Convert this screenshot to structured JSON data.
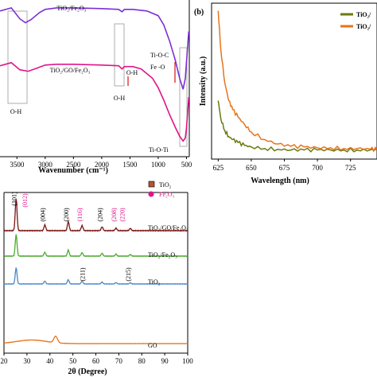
{
  "chart_data": [
    {
      "type": "line",
      "panel": "a",
      "xlabel": "Wavenumber (cm⁻¹)",
      "xlim": [
        3800,
        450
      ],
      "ticks": [
        "3500",
        "3000",
        "2500",
        "2000",
        "1500",
        "1000",
        "500"
      ],
      "tick_values": [
        3500,
        3000,
        2500,
        2000,
        1500,
        1000,
        500
      ],
      "series": [
        {
          "name": "TiO₂/Fe₂O₃",
          "color": "#7b2fd6",
          "x": [
            3800,
            3600,
            3450,
            3350,
            3250,
            3100,
            3000,
            2800,
            2500,
            2000,
            1700,
            1640,
            1600,
            1450,
            1200,
            1000,
            900,
            800,
            700,
            620,
            560,
            520,
            500,
            480,
            460
          ],
          "y": [
            0.93,
            0.95,
            0.88,
            0.855,
            0.875,
            0.92,
            0.94,
            0.95,
            0.95,
            0.945,
            0.94,
            0.925,
            0.94,
            0.94,
            0.93,
            0.9,
            0.84,
            0.74,
            0.62,
            0.5,
            0.43,
            0.5,
            0.6,
            0.7,
            0.8
          ]
        },
        {
          "name": "TiO₂/GO/Fe₂O₃",
          "color": "#e0148a",
          "x": [
            3800,
            3600,
            3450,
            3300,
            3150,
            3000,
            2800,
            2500,
            2000,
            1700,
            1640,
            1600,
            1450,
            1300,
            1100,
            1000,
            900,
            800,
            700,
            620,
            560,
            520,
            500,
            480,
            460
          ],
          "y": [
            0.58,
            0.6,
            0.555,
            0.545,
            0.565,
            0.585,
            0.59,
            0.59,
            0.585,
            0.58,
            0.56,
            0.575,
            0.575,
            0.56,
            0.5,
            0.44,
            0.36,
            0.27,
            0.19,
            0.13,
            0.1,
            0.12,
            0.18,
            0.28,
            0.38
          ]
        }
      ],
      "annotations": {
        "tio2fe": "TiO₂/Fe₂O₃",
        "tio2gofe": "TiO₂/GO/Fe₂O₃",
        "oh1": "O-H",
        "oh2": "O-H",
        "oh3": "O-H",
        "tioc": "Ti-O-C",
        "feo": "Fe -O",
        "tioti": "Ti-O-Ti"
      }
    },
    {
      "type": "line",
      "panel": "b",
      "panel_label": "(b)",
      "xlabel": "Wavelength (nm)",
      "ylabel": "Intensity (a.u.)",
      "xlim": [
        620,
        745
      ],
      "ticks": [
        "625",
        "650",
        "675",
        "700",
        "725"
      ],
      "tick_values": [
        625,
        650,
        675,
        700,
        725
      ],
      "legend_position": "top-right",
      "series": [
        {
          "name": "TiO₂/",
          "color": "#6b7a12",
          "x": [
            625,
            627,
            630,
            633,
            636,
            640,
            645,
            650,
            660,
            670,
            680,
            690,
            700,
            710,
            720,
            730,
            740,
            745
          ],
          "y": [
            0.38,
            0.26,
            0.18,
            0.14,
            0.12,
            0.1,
            0.08,
            0.07,
            0.06,
            0.055,
            0.05,
            0.05,
            0.05,
            0.05,
            0.05,
            0.05,
            0.05,
            0.05
          ]
        },
        {
          "name": "TiO₂/",
          "color": "#e8741a",
          "x": [
            625,
            627,
            630,
            633,
            636,
            640,
            645,
            650,
            660,
            670,
            680,
            690,
            700,
            710,
            720,
            730,
            740,
            745
          ],
          "y": [
            0.98,
            0.72,
            0.5,
            0.38,
            0.32,
            0.27,
            0.22,
            0.17,
            0.12,
            0.09,
            0.075,
            0.07,
            0.065,
            0.065,
            0.06,
            0.06,
            0.055,
            0.055
          ]
        }
      ]
    },
    {
      "type": "line",
      "panel": "c",
      "xlabel": "2θ (Degree)",
      "xlim": [
        20,
        100
      ],
      "ticks": [
        "20",
        "30",
        "40",
        "50",
        "60",
        "70",
        "80",
        "90",
        "100"
      ],
      "tick_values": [
        20,
        30,
        40,
        50,
        60,
        70,
        80,
        90,
        100
      ],
      "legend": [
        {
          "name": "TiO₂",
          "color": "#000000"
        },
        {
          "name": "Fe₂O₃",
          "color": "#e0148a"
        }
      ],
      "series": [
        {
          "name": "TiO₂/GO/Fe₂O₃",
          "color": "#7a1414",
          "baseline": 0.0,
          "peaks": [
            [
              25.3,
              1.0
            ],
            [
              37.8,
              0.18
            ],
            [
              48.0,
              0.28
            ],
            [
              54.0,
              0.16
            ],
            [
              62.7,
              0.12
            ],
            [
              68.8,
              0.08
            ],
            [
              75.0,
              0.07
            ]
          ]
        },
        {
          "name": "TiO₂/Fe₂O₃",
          "color": "#4daa2f",
          "baseline": 0.0,
          "peaks": [
            [
              25.3,
              0.8
            ],
            [
              37.8,
              0.14
            ],
            [
              48.0,
              0.22
            ],
            [
              54.0,
              0.13
            ],
            [
              62.7,
              0.1
            ],
            [
              68.8,
              0.07
            ],
            [
              75.0,
              0.06
            ]
          ]
        },
        {
          "name": "TiO₂",
          "color": "#4a87c8",
          "baseline": 0.0,
          "peaks": [
            [
              25.3,
              0.85
            ],
            [
              37.8,
              0.15
            ],
            [
              48.0,
              0.22
            ],
            [
              54.0,
              0.14
            ],
            [
              62.7,
              0.1
            ],
            [
              68.8,
              0.07
            ],
            [
              75.0,
              0.06
            ]
          ]
        },
        {
          "name": "GO",
          "color": "#e8741a",
          "baseline": 0.0,
          "peaks": [
            [
              42.5,
              0.45
            ]
          ]
        }
      ],
      "peak_labels": [
        {
          "text": "(101)",
          "x": 25.3,
          "color": "black"
        },
        {
          "text": "(012)",
          "x": 30.0,
          "color": "pink"
        },
        {
          "text": "(004)",
          "x": 37.8,
          "color": "black"
        },
        {
          "text": "(200)",
          "x": 48.0,
          "color": "black"
        },
        {
          "text": "(116)",
          "x": 54.0,
          "color": "pink"
        },
        {
          "text": "(204)",
          "x": 62.7,
          "color": "black"
        },
        {
          "text": "(208)",
          "x": 68.8,
          "color": "pink"
        },
        {
          "text": "(220)",
          "x": 72.5,
          "color": "pink"
        },
        {
          "text": "(211)",
          "x": 55.1,
          "color": "black"
        },
        {
          "text": "(215)",
          "x": 75.0,
          "color": "black"
        }
      ]
    }
  ]
}
